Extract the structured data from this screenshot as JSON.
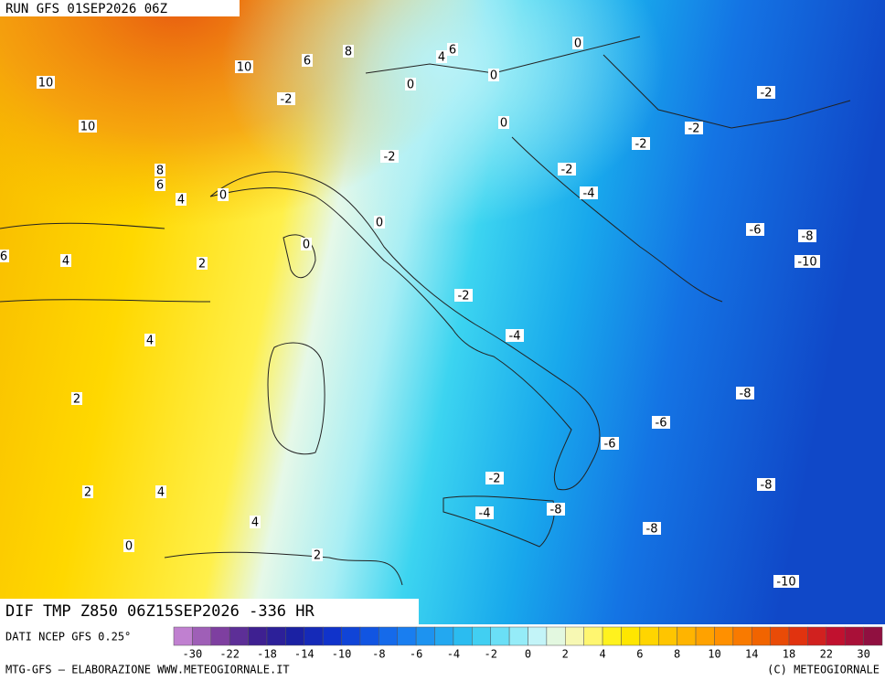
{
  "header": {
    "run": "RUN GFS 01SEP2026 06Z"
  },
  "footer": {
    "title": "DIF TMP Z850 06Z15SEP2026 -336 HR",
    "source": "DATI NCEP GFS 0.25°",
    "credit": "MTG-GFS — ELABORAZIONE WWW.METEOGIORNALE.IT",
    "copyright": "(C) METEOGIORNALE"
  },
  "colorbar": {
    "labels": [
      "-30",
      "-22",
      "-18",
      "-14",
      "-10",
      "-8",
      "-6",
      "-4",
      "-2",
      "0",
      "2",
      "4",
      "6",
      "8",
      "10",
      "14",
      "18",
      "22",
      "30"
    ]
  },
  "contours": [
    "10",
    "10",
    "10",
    "6",
    "8",
    "6",
    "4",
    "0",
    "0",
    "0",
    "-2",
    "0",
    "-2",
    "-2",
    "-2",
    "-2",
    "-2",
    "8",
    "6",
    "4",
    "0",
    "-4",
    "0",
    "-6",
    "-8",
    "-10",
    "0",
    "6",
    "4",
    "2",
    "-2",
    "-4",
    "4",
    "-8",
    "2",
    "-6",
    "-6",
    "-2",
    "-8",
    "2",
    "4",
    "-4",
    "-8",
    "4",
    "-8",
    "0",
    "2",
    "-10"
  ]
}
